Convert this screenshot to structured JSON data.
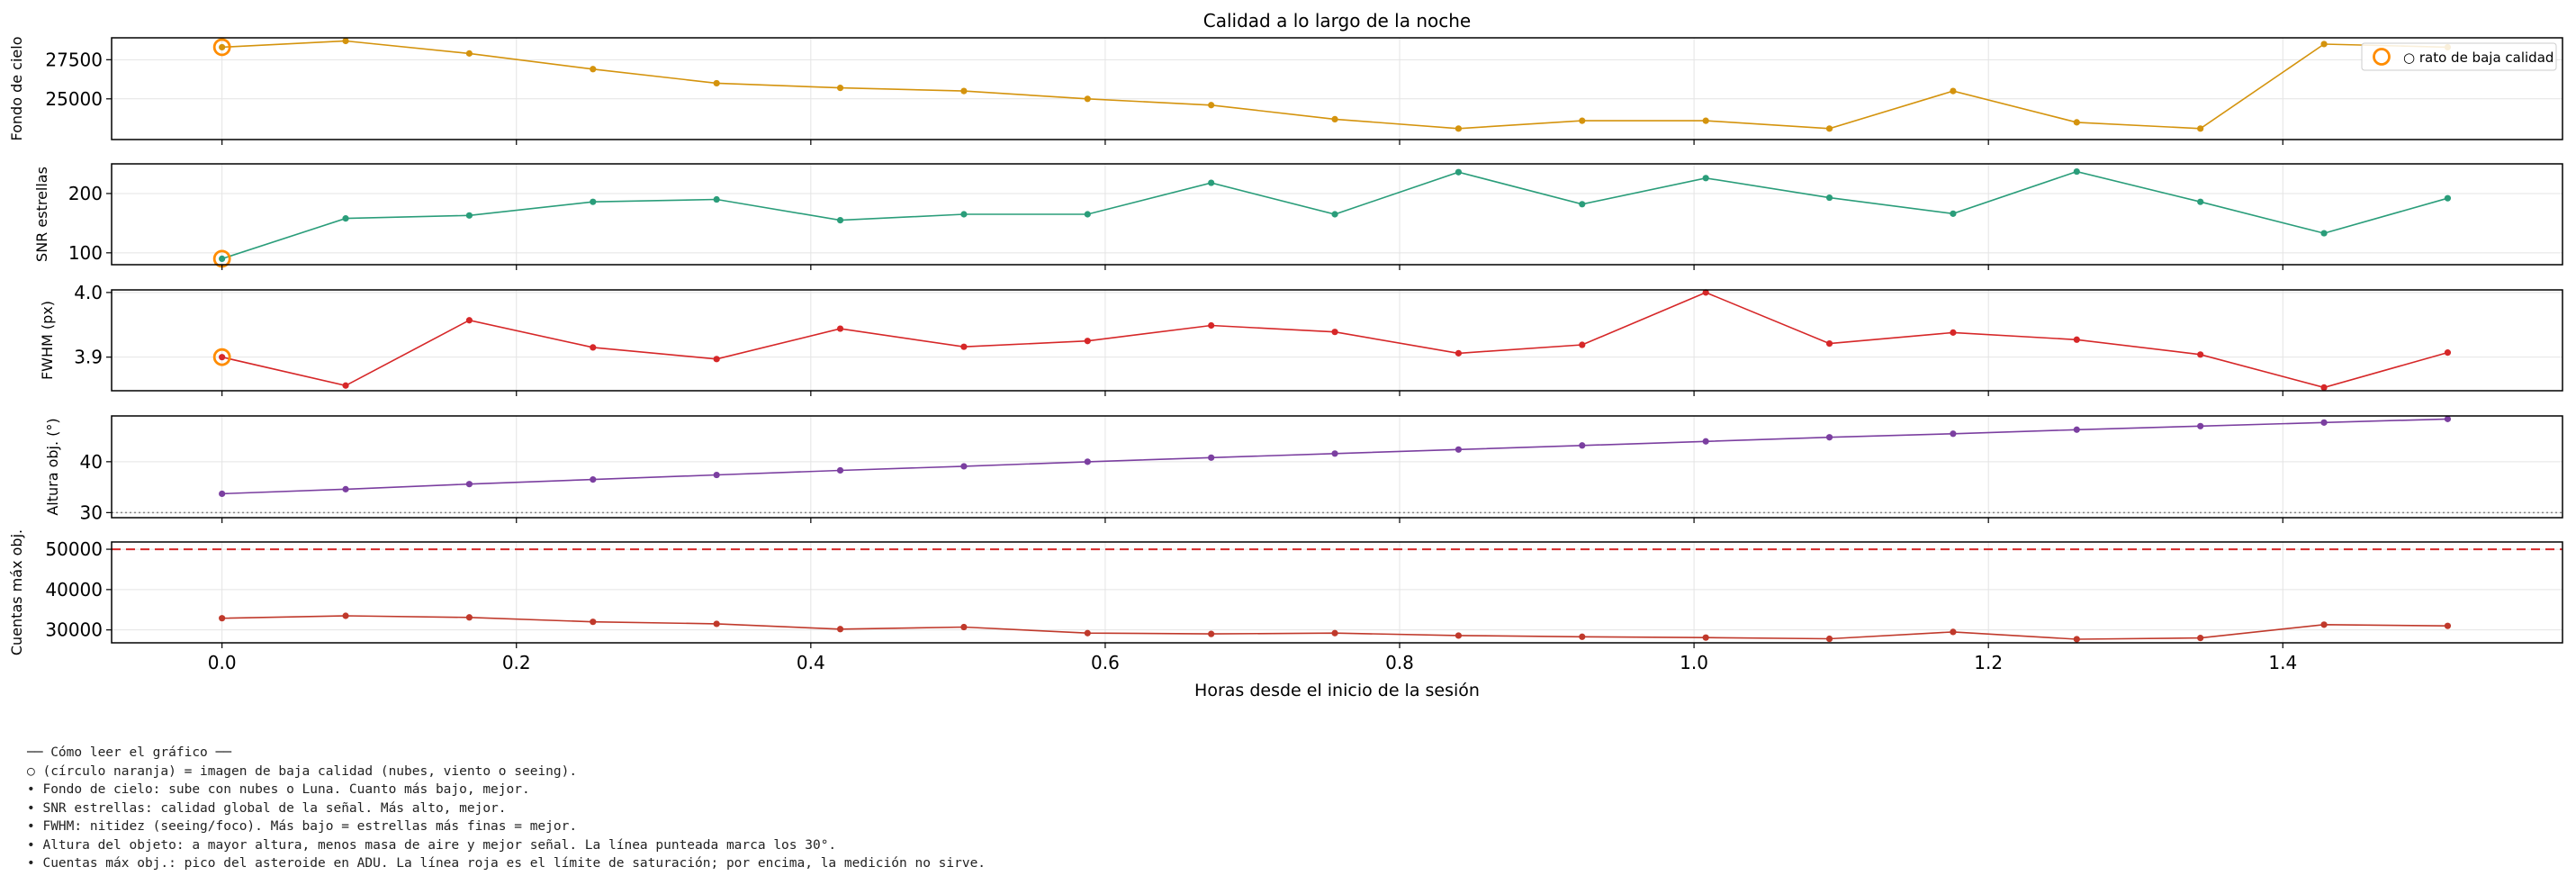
{
  "chart_data": {
    "type": "line",
    "title": "Calidad a lo largo de la noche",
    "xlabel": "Horas desde el inicio de la sesión",
    "xlim": [
      -0.075,
      1.59
    ],
    "xticks": [
      0.0,
      0.2,
      0.4,
      0.6,
      0.8,
      1.0,
      1.2,
      1.4
    ],
    "x_tick_labels": [
      "0.0",
      "0.2",
      "0.4",
      "0.6",
      "0.8",
      "1.0",
      "1.2",
      "1.4"
    ],
    "x": [
      0.0,
      0.084,
      0.168,
      0.252,
      0.336,
      0.42,
      0.504,
      0.588,
      0.672,
      0.756,
      0.84,
      0.924,
      1.008,
      1.092,
      1.176,
      1.26,
      1.344,
      1.428,
      1.512
    ],
    "grid": true,
    "legend": {
      "label": "○ rato de baja calidad",
      "placement": "top-right",
      "marker_color": "#ff8c00"
    },
    "panels": [
      {
        "name": "sky",
        "ylabel": "Fondo de cielo",
        "ylim": [
          22400,
          28900
        ],
        "yticks": [
          25000,
          27500
        ],
        "y_tick_labels": [
          "25000",
          "27500"
        ],
        "color": "#d4930d",
        "values": [
          28300,
          28700,
          27900,
          26900,
          26000,
          25700,
          25500,
          25000,
          24600,
          23700,
          23100,
          23600,
          23600,
          23100,
          25500,
          23500,
          23100,
          28500,
          28300
        ],
        "low_quality_index": [
          0
        ]
      },
      {
        "name": "snr",
        "ylabel": "SNR estrellas",
        "ylim": [
          80,
          250
        ],
        "yticks": [
          100,
          200
        ],
        "y_tick_labels": [
          "100",
          "200"
        ],
        "color": "#2a9d7a",
        "values": [
          90,
          158,
          163,
          186,
          190,
          155,
          165,
          165,
          218,
          165,
          236,
          182,
          226,
          193,
          166,
          237,
          186,
          133,
          192
        ],
        "low_quality_index": [
          0
        ]
      },
      {
        "name": "fwhm",
        "ylabel": "FWHM (px)",
        "ylim": [
          3.848,
          4.004
        ],
        "yticks": [
          3.9,
          4.0
        ],
        "y_tick_labels": [
          "3.9",
          "4.0"
        ],
        "color": "#d62728",
        "values": [
          3.9,
          3.856,
          3.957,
          3.915,
          3.897,
          3.944,
          3.916,
          3.925,
          3.949,
          3.939,
          3.906,
          3.919,
          4.0,
          3.921,
          3.938,
          3.927,
          3.904,
          3.853,
          3.907
        ],
        "low_quality_index": [
          0
        ]
      },
      {
        "name": "altitude",
        "ylabel": "Altura obj. (°)",
        "ylim": [
          29,
          49
        ],
        "yticks": [
          30,
          40
        ],
        "y_tick_labels": [
          "30",
          "40"
        ],
        "color": "#7b3fa0",
        "values": [
          33.7,
          34.6,
          35.6,
          36.5,
          37.4,
          38.3,
          39.1,
          40.0,
          40.8,
          41.6,
          42.4,
          43.2,
          44.0,
          44.8,
          45.5,
          46.3,
          47.0,
          47.7,
          48.4
        ],
        "reference_line": {
          "value": 30,
          "style": "dotted",
          "color": "#888888"
        }
      },
      {
        "name": "peak_counts",
        "ylabel": "Cuentas máx obj.",
        "ylim": [
          26800,
          51800
        ],
        "yticks": [
          30000,
          40000,
          50000
        ],
        "y_tick_labels": [
          "30000",
          "40000",
          "50000"
        ],
        "color": "#c0392b",
        "values": [
          32900,
          33500,
          33100,
          32000,
          31500,
          30200,
          30700,
          29200,
          29000,
          29200,
          28600,
          28300,
          28100,
          27800,
          29500,
          27700,
          28000,
          31300,
          31000
        ],
        "reference_line": {
          "value": 50000,
          "style": "dashed",
          "color": "#d62728"
        }
      }
    ]
  },
  "notes": [
    "── Cómo leer el gráfico ──",
    "○ (círculo naranja) = imagen de baja calidad (nubes, viento o seeing).",
    "• Fondo de cielo: sube con nubes o Luna. Cuanto más bajo, mejor.",
    "• SNR estrellas: calidad global de la señal. Más alto, mejor.",
    "• FWHM: nitidez (seeing/foco). Más bajo = estrellas más finas = mejor.",
    "• Altura del objeto: a mayor altura, menos masa de aire y mejor señal. La línea punteada marca los 30°.",
    "• Cuentas máx obj.: pico del asteroide en ADU. La línea roja es el límite de saturación; por encima, la medición no sirve."
  ]
}
